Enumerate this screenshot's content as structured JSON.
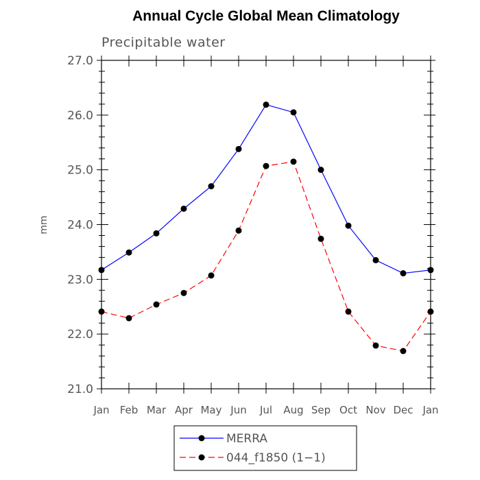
{
  "chart_data": {
    "type": "line",
    "title": "Annual Cycle Global Mean Climatology",
    "subtitle": "Precipitable water",
    "xlabel": "",
    "ylabel": "mm",
    "categories": [
      "Jan",
      "Feb",
      "Mar",
      "Apr",
      "May",
      "Jun",
      "Jul",
      "Aug",
      "Sep",
      "Oct",
      "Nov",
      "Dec",
      "Jan"
    ],
    "ylim": [
      21.0,
      27.0
    ],
    "yticks": [
      21.0,
      22.0,
      23.0,
      24.0,
      25.0,
      26.0,
      27.0
    ],
    "ytick_labels": [
      "21.0",
      "22.0",
      "23.0",
      "24.0",
      "25.0",
      "26.0",
      "27.0"
    ],
    "grid": false,
    "legend_position": "bottom-center",
    "series": [
      {
        "name": "MERRA",
        "color": "#0000ff",
        "dash": "solid",
        "values": [
          23.17,
          23.49,
          23.84,
          24.29,
          24.7,
          25.38,
          26.19,
          26.05,
          25.0,
          23.98,
          23.35,
          23.11,
          23.17
        ]
      },
      {
        "name": "044_f1850 (1−1)",
        "color": "#ff0000",
        "dash": "dashed",
        "values": [
          22.41,
          22.29,
          22.54,
          22.75,
          23.07,
          23.89,
          25.07,
          25.15,
          23.74,
          22.41,
          21.79,
          21.69,
          22.41
        ]
      }
    ]
  }
}
